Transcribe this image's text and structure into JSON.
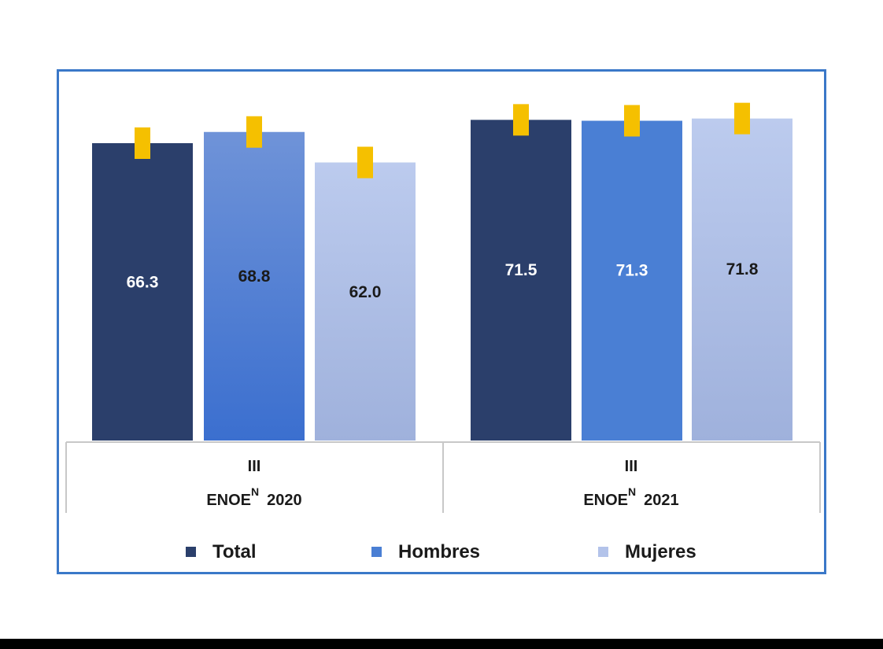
{
  "chart_data": {
    "type": "bar",
    "title": "",
    "xlabel": "",
    "ylabel": "",
    "groups": [
      {
        "period": "III",
        "label": "ENOE",
        "superscript": "N",
        "year": "2020"
      },
      {
        "period": "III",
        "label": "ENOE",
        "superscript": "N",
        "year": "2021"
      }
    ],
    "series": [
      {
        "name": "Total",
        "values": [
          66.3,
          71.5
        ],
        "value_labels": [
          "66.3",
          "71.5"
        ],
        "color": "#2b3f6b"
      },
      {
        "name": "Hombres",
        "values": [
          68.8,
          71.3
        ],
        "value_labels": [
          "68.8",
          "71.3"
        ],
        "color": "#4a7fd4"
      },
      {
        "name": "Mujeres",
        "values": [
          62.0,
          71.8
        ],
        "value_labels": [
          "62.0",
          "71.8"
        ],
        "color": "#b3c3ea"
      }
    ],
    "error_bar_color": "#f5c000",
    "ylim": [
      0,
      80
    ],
    "grid": false,
    "legend_position": "bottom"
  }
}
